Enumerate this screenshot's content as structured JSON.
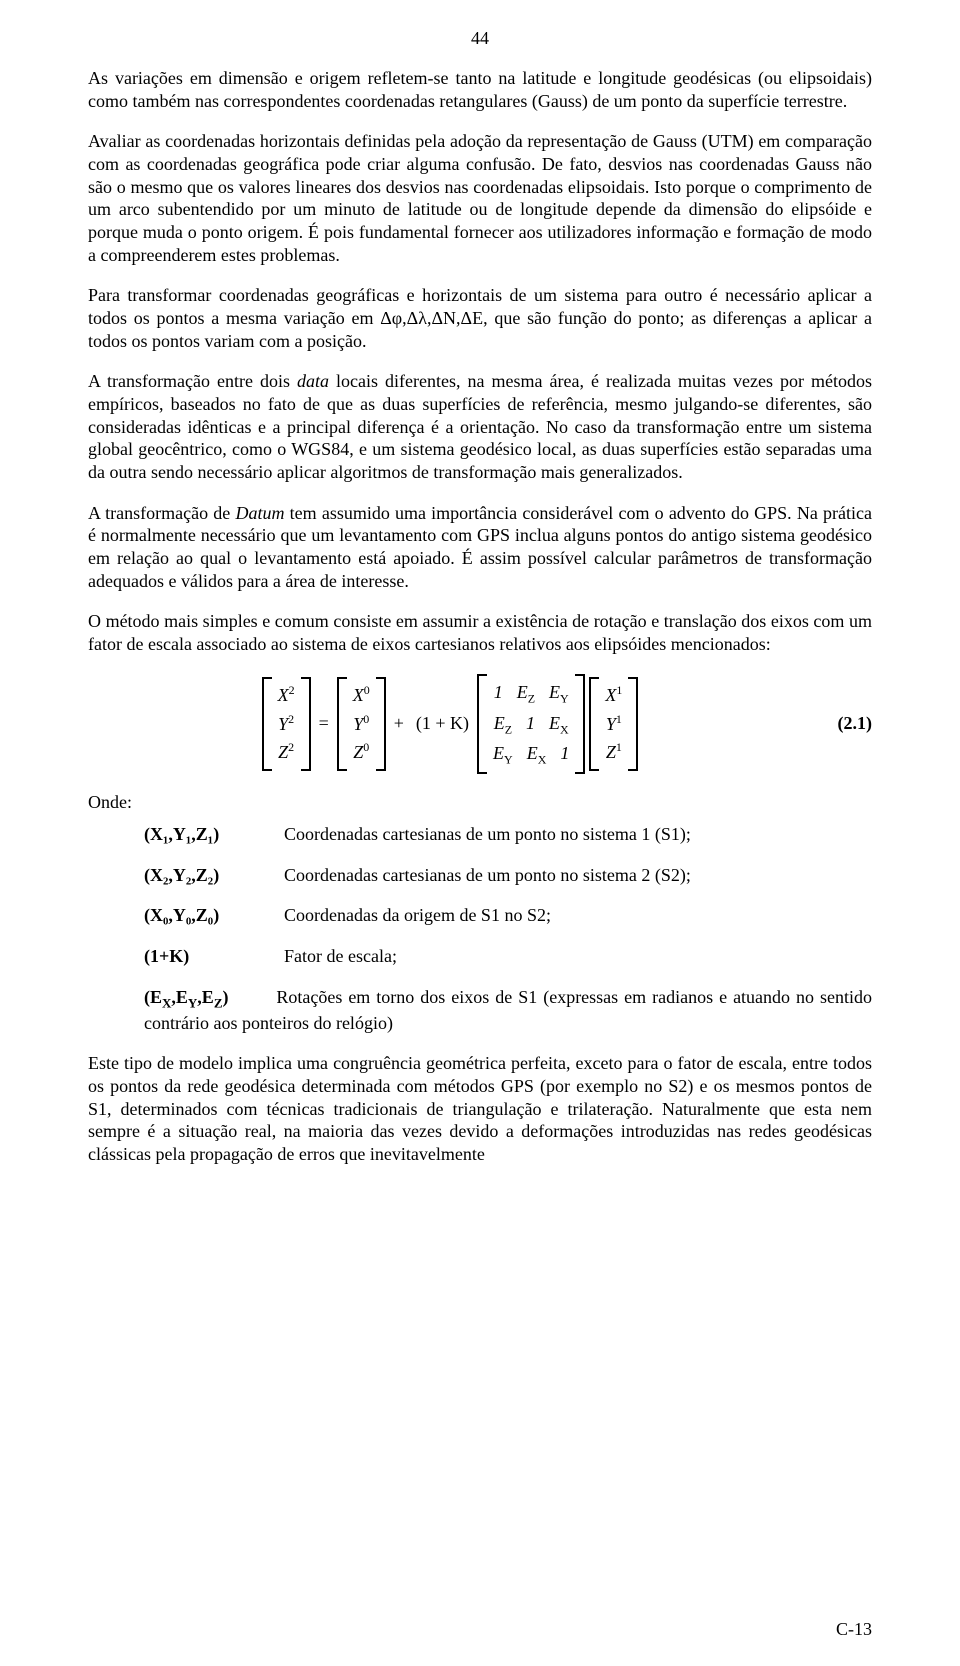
{
  "page_number_top": "44",
  "paragraphs": {
    "p1": "As variações em dimensão e origem refletem-se tanto na latitude e longitude geodésicas (ou elipsoidais) como também nas correspondentes coordenadas retangulares (Gauss) de um ponto da superfície terrestre.",
    "p2": "Avaliar as coordenadas horizontais definidas pela adoção da representação de Gauss (UTM) em comparação com as coordenadas geográfica pode criar alguma confusão. De fato, desvios nas coordenadas Gauss não são o mesmo que os valores lineares dos desvios nas coordenadas elipsoidais. Isto porque o comprimento de um arco subentendido por um minuto de latitude ou de longitude depende da dimensão do elipsóide e porque muda o ponto origem. É pois fundamental fornecer aos utilizadores informação e formação de modo a compreenderem estes problemas.",
    "p3": "Para transformar coordenadas geográficas e horizontais de um sistema para outro é necessário aplicar a todos os pontos a mesma variação em Δφ,Δλ,ΔN,ΔE, que são função do ponto; as diferenças a aplicar a todos os pontos variam com a posição.",
    "p4a": "A transformação entre dois ",
    "p4b": " locais diferentes, na mesma área, é realizada muitas vezes por métodos empíricos, baseados no fato de que as duas superfícies de referência, mesmo julgando-se diferentes, são consideradas idênticas e a principal diferença é a orientação. No caso da transformação entre um sistema global geocêntrico, como o WGS84, e um sistema geodésico local, as duas superfícies estão separadas uma da outra sendo necessário aplicar algoritmos de transformação mais generalizados.",
    "p4_italic": "data",
    "p5a": "A transformação de ",
    "p5b": " tem assumido uma importância considerável com o advento do GPS. Na prática é normalmente necessário que um levantamento com GPS inclua alguns pontos do antigo sistema geodésico em relação ao qual o levantamento está apoiado. É assim possível calcular parâmetros de transformação adequados e válidos para a área de interesse.",
    "p5_italic": "Datum",
    "p6": "O método mais simples e comum consiste em assumir a existência de rotação e translação dos eixos com um fator de escala associado ao sistema de eixos cartesianos relativos aos elipsóides mencionados:",
    "p7": "Este tipo de modelo implica uma congruência geométrica perfeita, exceto para o fator de escala, entre todos os pontos da rede geodésica determinada com métodos GPS (por exemplo no S2) e os mesmos pontos de S1, determinados com técnicas tradicionais de triangulação e trilateração. Naturalmente que esta nem sempre é a situação real, na maioria das vezes devido a deformações introduzidas nas redes geodésicas clássicas pela propagação de erros que inevitavelmente"
  },
  "equation": {
    "label": "(2.1)",
    "vec2": [
      "X",
      "Y",
      "Z"
    ],
    "sub2": "2",
    "vec0": [
      "X",
      "Y",
      "Z"
    ],
    "sub0": "0",
    "scalar": "(1 + K)",
    "rot": [
      [
        "1",
        "E",
        "E"
      ],
      [
        "E",
        "1",
        "E"
      ],
      [
        "E",
        "E",
        "1"
      ]
    ],
    "rot_sub": [
      [
        "",
        "Z",
        "Y"
      ],
      [
        "Z",
        "",
        "X"
      ],
      [
        "Y",
        "X",
        ""
      ]
    ],
    "vec1": [
      "X",
      "Y",
      "Z"
    ],
    "sub1": "1"
  },
  "defs": {
    "onde": "Onde:",
    "d1_sym_plain": "(X₁,Y₁,Z₁)",
    "d1_text": "Coordenadas cartesianas de um ponto no sistema 1 (S1);",
    "d2_sym_plain": "(X₂,Y₂,Z₂)",
    "d2_text": "Coordenadas cartesianas de um ponto no sistema 2 (S2);",
    "d3_sym_plain": "(X₀,Y₀,Z₀)",
    "d3_text": "Coordenadas da origem de S1 no S2;",
    "d4_sym": "(1+K)",
    "d4_text": "Fator de escala;",
    "d5_sym_plain_a": "(E",
    "d5_sym_plain_b": ",E",
    "d5_sym_plain_c": ",E",
    "d5_sym_plain_d": ")",
    "d5_sub_x": "X",
    "d5_sub_y": "Y",
    "d5_sub_z": "Z",
    "d5_text": "Rotações em torno dos eixos de S1 (expressas em radianos e atuando no sentido contrário aos ponteiros do relógio)"
  },
  "footer": "C-13"
}
